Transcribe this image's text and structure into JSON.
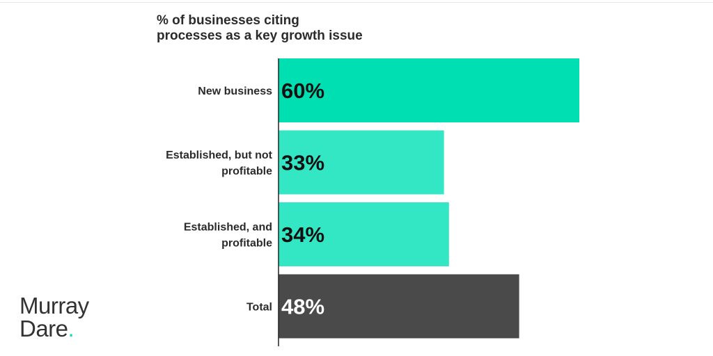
{
  "chart_data": {
    "type": "bar",
    "orientation": "horizontal",
    "title_lines": [
      "% of businesses citing",
      "processes as a key growth issue"
    ],
    "categories": [
      [
        "New business"
      ],
      [
        "Established, but not",
        "profitable"
      ],
      [
        "Established, and",
        "profitable"
      ],
      [
        "Total"
      ]
    ],
    "values": [
      60,
      33,
      34,
      48
    ],
    "value_labels": [
      "60%",
      "33%",
      "34%",
      "48%"
    ],
    "unit": "%",
    "xlim": [
      0,
      60
    ],
    "bar_colors": [
      "#00dfb1",
      "#33e6c4",
      "#33e6c4",
      "#4a4a4a"
    ],
    "label_colors": [
      "#111111",
      "#111111",
      "#111111",
      "#ffffff"
    ],
    "axis_color": "#222222",
    "grid": false,
    "legend": "none"
  },
  "brand": {
    "line1": "Murray",
    "line2": "Dare",
    "dot": ".",
    "accent_color": "#1ad6b2"
  }
}
